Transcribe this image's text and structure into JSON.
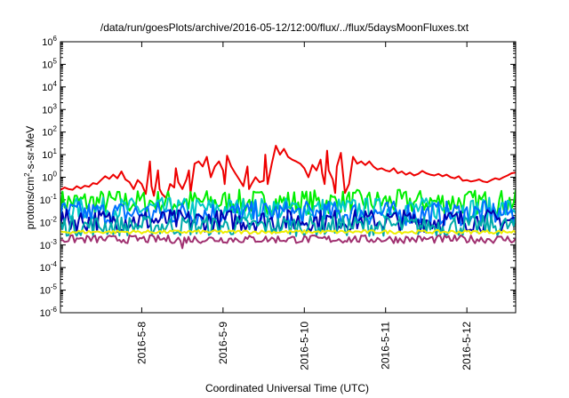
{
  "chart_data": {
    "type": "line",
    "title": "/data/run/goesPlots/archive/2016-05-12/12:00/flux/../flux/5daysMoonFluxes.txt",
    "xlabel": "Coordinated Universal Time (UTC)",
    "ylabel": {
      "prefix": "protons/cm",
      "sup": "2",
      "suffix": "-s-sr-MeV"
    },
    "yscale": "log",
    "ylim_exp": [
      -6,
      6
    ],
    "y_ticks": [
      {
        "base": "10",
        "exp": "-6"
      },
      {
        "base": "10",
        "exp": "-5"
      },
      {
        "base": "10",
        "exp": "-4"
      },
      {
        "base": "10",
        "exp": "-3"
      },
      {
        "base": "10",
        "exp": "-2"
      },
      {
        "base": "10",
        "exp": "-1"
      },
      {
        "base": "10",
        "exp": "0"
      },
      {
        "base": "10",
        "exp": "1"
      },
      {
        "base": "10",
        "exp": "2"
      },
      {
        "base": "10",
        "exp": "3"
      },
      {
        "base": "10",
        "exp": "4"
      },
      {
        "base": "10",
        "exp": "5"
      },
      {
        "base": "10",
        "exp": "6"
      }
    ],
    "x_unit": "day",
    "xlim": [
      0,
      5.6
    ],
    "x_ticks": [
      {
        "x": 1,
        "label": "2016-5-8"
      },
      {
        "x": 2,
        "label": "2016-5-9"
      },
      {
        "x": 3,
        "label": "2016-5-10"
      },
      {
        "x": 4,
        "label": "2016-5-11"
      },
      {
        "x": 5,
        "label": "2016-5-12"
      }
    ],
    "grid": false,
    "legend": "none",
    "series": [
      {
        "color": "#ee0000",
        "points": [
          [
            0.0,
            0.28
          ],
          [
            0.05,
            0.35
          ],
          [
            0.1,
            0.3
          ],
          [
            0.15,
            0.28
          ],
          [
            0.2,
            0.4
          ],
          [
            0.25,
            0.32
          ],
          [
            0.3,
            0.42
          ],
          [
            0.35,
            0.38
          ],
          [
            0.4,
            0.55
          ],
          [
            0.45,
            0.5
          ],
          [
            0.5,
            0.75
          ],
          [
            0.55,
            1.1
          ],
          [
            0.6,
            0.85
          ],
          [
            0.65,
            1.3
          ],
          [
            0.7,
            0.9
          ],
          [
            0.75,
            1.8
          ],
          [
            0.8,
            0.8
          ],
          [
            0.85,
            0.6
          ],
          [
            0.9,
            0.3
          ],
          [
            0.95,
            0.75
          ],
          [
            1.0,
            0.5
          ],
          [
            1.05,
            0.18
          ],
          [
            1.1,
            5.0
          ],
          [
            1.12,
            0.4
          ],
          [
            1.15,
            0.15
          ],
          [
            1.18,
            0.7
          ],
          [
            1.2,
            2.0
          ],
          [
            1.22,
            0.3
          ],
          [
            1.25,
            0.18
          ],
          [
            1.3,
            0.12
          ],
          [
            1.35,
            0.5
          ],
          [
            1.4,
            0.35
          ],
          [
            1.42,
            2.5
          ],
          [
            1.45,
            0.6
          ],
          [
            1.5,
            0.3
          ],
          [
            1.55,
            0.8
          ],
          [
            1.58,
            2.0
          ],
          [
            1.6,
            0.2
          ],
          [
            1.65,
            4.0
          ],
          [
            1.7,
            5.0
          ],
          [
            1.75,
            3.0
          ],
          [
            1.8,
            8.0
          ],
          [
            1.85,
            1.0
          ],
          [
            1.9,
            3.0
          ],
          [
            1.95,
            5.0
          ],
          [
            2.0,
            2.0
          ],
          [
            2.02,
            0.5
          ],
          [
            2.05,
            9.0
          ],
          [
            2.1,
            3.0
          ],
          [
            2.15,
            1.5
          ],
          [
            2.2,
            0.8
          ],
          [
            2.25,
            0.4
          ],
          [
            2.3,
            3.0
          ],
          [
            2.32,
            0.3
          ],
          [
            2.35,
            0.5
          ],
          [
            2.4,
            1.0
          ],
          [
            2.45,
            0.6
          ],
          [
            2.5,
            0.7
          ],
          [
            2.52,
            10
          ],
          [
            2.55,
            0.5
          ],
          [
            2.6,
            4.0
          ],
          [
            2.65,
            25
          ],
          [
            2.7,
            10
          ],
          [
            2.75,
            18
          ],
          [
            2.8,
            8.0
          ],
          [
            2.85,
            6.0
          ],
          [
            2.9,
            5.0
          ],
          [
            2.95,
            4.0
          ],
          [
            3.0,
            2.5
          ],
          [
            3.05,
            1.0
          ],
          [
            3.1,
            3.5
          ],
          [
            3.15,
            2.0
          ],
          [
            3.2,
            6.0
          ],
          [
            3.22,
            1.5
          ],
          [
            3.25,
            0.5
          ],
          [
            3.28,
            15
          ],
          [
            3.3,
            2.0
          ],
          [
            3.35,
            0.8
          ],
          [
            3.38,
            0.2
          ],
          [
            3.4,
            3.0
          ],
          [
            3.45,
            12
          ],
          [
            3.5,
            0.2
          ],
          [
            3.55,
            0.5
          ],
          [
            3.6,
            8.0
          ],
          [
            3.65,
            4.0
          ],
          [
            3.7,
            5.0
          ],
          [
            3.75,
            3.5
          ],
          [
            3.8,
            5.0
          ],
          [
            3.85,
            3.0
          ],
          [
            3.9,
            2.2
          ],
          [
            3.95,
            2.5
          ],
          [
            4.0,
            2.0
          ],
          [
            4.05,
            1.8
          ],
          [
            4.1,
            2.5
          ],
          [
            4.15,
            1.5
          ],
          [
            4.2,
            1.8
          ],
          [
            4.25,
            1.3
          ],
          [
            4.3,
            1.6
          ],
          [
            4.35,
            1.2
          ],
          [
            4.4,
            1.4
          ],
          [
            4.45,
            1.9
          ],
          [
            4.5,
            1.5
          ],
          [
            4.55,
            1.3
          ],
          [
            4.6,
            1.2
          ],
          [
            4.65,
            1.4
          ],
          [
            4.7,
            1.1
          ],
          [
            4.75,
            1.3
          ],
          [
            4.8,
            1.0
          ],
          [
            4.85,
            0.9
          ],
          [
            4.9,
            1.1
          ],
          [
            4.95,
            0.7
          ],
          [
            5.0,
            0.75
          ],
          [
            5.05,
            0.65
          ],
          [
            5.1,
            0.7
          ],
          [
            5.15,
            0.8
          ],
          [
            5.2,
            0.65
          ],
          [
            5.25,
            0.6
          ],
          [
            5.3,
            0.75
          ],
          [
            5.35,
            0.9
          ],
          [
            5.4,
            0.8
          ],
          [
            5.45,
            1.0
          ],
          [
            5.5,
            1.2
          ],
          [
            5.55,
            1.5
          ],
          [
            5.6,
            1.6
          ]
        ]
      },
      {
        "color": "#00ee00",
        "base": 0.08,
        "amp": 0.55
      },
      {
        "color": "#00c8c8",
        "base": 0.04,
        "amp": 0.5
      },
      {
        "color": "#0070ff",
        "base": 0.025,
        "amp": 0.55
      },
      {
        "color": "#0000b0",
        "base": 0.012,
        "amp": 0.5
      },
      {
        "color": "#00aaaa",
        "base": 0.007,
        "amp": 0.45
      },
      {
        "color": "#eeee00",
        "base": 0.0038,
        "amp": 0.08
      },
      {
        "color": "#a03070",
        "base": 0.0018,
        "amp": 0.18
      }
    ]
  }
}
